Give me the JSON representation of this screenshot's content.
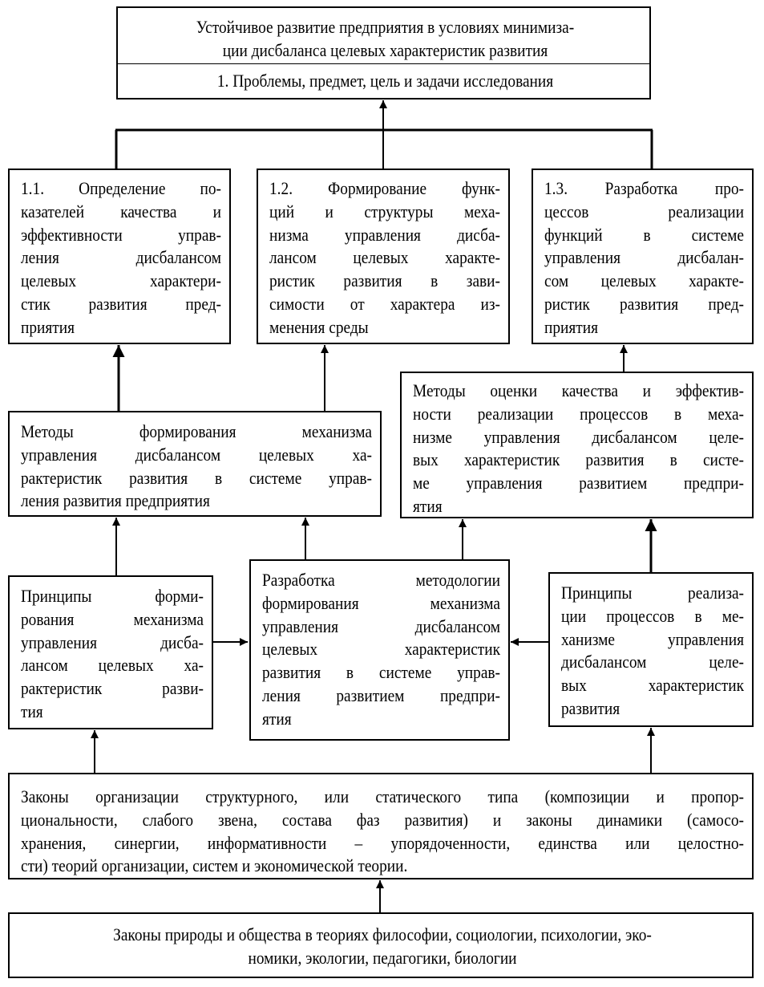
{
  "boxes": {
    "goal": {
      "lines": [
        "Устойчивое развитие предприятия в условиях минимиза-",
        "ции дисбаланса целевых характеристик развития"
      ],
      "sub": "1. Проблемы, предмет, цель и задачи исследования"
    },
    "task_1_1": {
      "lines": [
        "1.1. Определение по-",
        "казателей качества и",
        "эффективности управ-",
        "ления дисбалансом",
        "целевых характери-",
        "стик развития пред-",
        "приятия"
      ]
    },
    "task_1_2": {
      "lines": [
        "1.2. Формирование функ-",
        "ций и структуры меха-",
        "низма управления дисба-",
        "лансом целевых характе-",
        "ристик развития в зави-",
        "симости от характера из-",
        "менения среды"
      ]
    },
    "task_1_3": {
      "lines": [
        "1.3. Разработка про-",
        "цессов реализации",
        "функций в системе",
        "управления дисбалан-",
        "сом целевых характе-",
        "ристик развития пред-",
        "приятия"
      ]
    },
    "methods_left": {
      "lines": [
        "Методы формирования механизма",
        "управления дисбалансом целевых ха-",
        "рактеристик развития в системе управ-",
        "ления развития предприятия"
      ]
    },
    "methods_right": {
      "lines": [
        "Методы оценки качества и эффектив-",
        "ности реализации процессов в меха-",
        "низме управления дисбалансом целе-",
        "вых характеристик развития в систе-",
        "ме управления развитием предпри-",
        "ятия"
      ]
    },
    "principles_left": {
      "lines": [
        "Принципы форми-",
        "рования механизма",
        "управления дисба-",
        "лансом целевых ха-",
        "рактеристик разви-",
        "тия"
      ]
    },
    "methodology": {
      "lines": [
        "Разработка методологии",
        "формирования механизма",
        "управления дисбалансом",
        "целевых характеристик",
        "развития в системе управ-",
        "ления развитием предпри-",
        "ятия"
      ]
    },
    "principles_right": {
      "lines": [
        "Принципы реализа-",
        "ции процессов в ме-",
        "ханизме управления",
        "дисбалансом целе-",
        "вых характеристик",
        "развития"
      ]
    },
    "laws": {
      "lines": [
        "Законы организации структурного, или статического типа (композиции и пропор-",
        "циональности, слабого звена, состава фаз развития) и законы динамики (самосо-",
        "хранения, синергии, информативности – упорядоченности, единства или целостно-",
        "сти) теорий организации, систем и экономической теории."
      ]
    },
    "nature_laws": {
      "lines": [
        "Законы природы и общества в теориях философии, социологии, психологии, эко-",
        "номики, экологии, педагогики, биологии"
      ]
    }
  }
}
